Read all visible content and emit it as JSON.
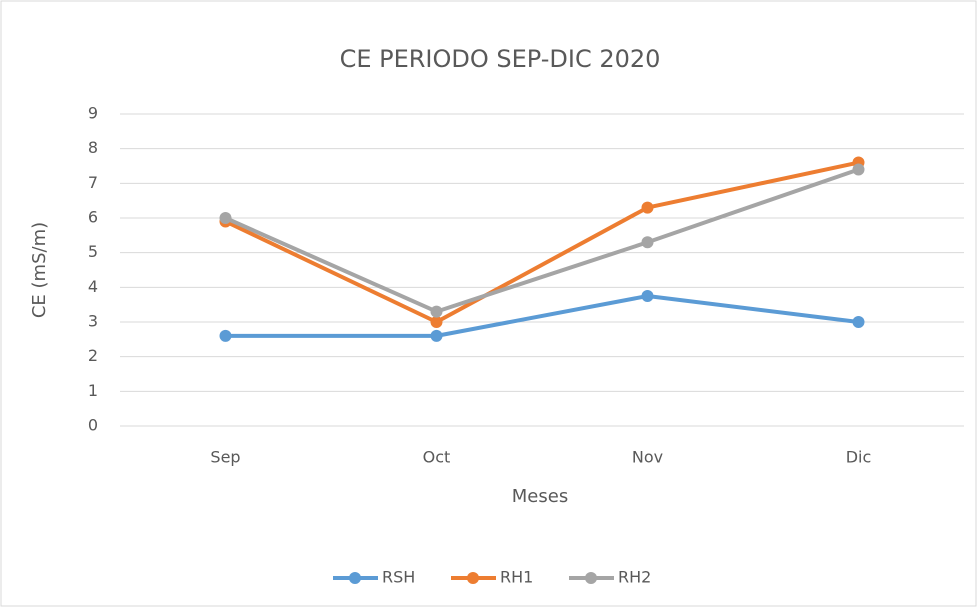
{
  "chart_data": {
    "type": "line",
    "title": "CE PERIODO SEP-DIC 2020",
    "x_label": "Meses",
    "y_label": "CE (mS/m)",
    "categories": [
      "Sep",
      "Oct",
      "Nov",
      "Dic"
    ],
    "series": [
      {
        "name": "RSH",
        "color": "#5b9bd5",
        "values": [
          2.6,
          2.6,
          3.75,
          3.0
        ]
      },
      {
        "name": "RH1",
        "color": "#ed7d31",
        "values": [
          5.9,
          3.0,
          6.3,
          7.6
        ]
      },
      {
        "name": "RH2",
        "color": "#a5a5a5",
        "values": [
          6.0,
          3.3,
          5.3,
          7.4
        ]
      }
    ],
    "ylim": [
      0,
      9
    ],
    "yticks": [
      0,
      1,
      2,
      3,
      4,
      5,
      6,
      7,
      8,
      9
    ],
    "grid": true,
    "legend": "bottom"
  }
}
